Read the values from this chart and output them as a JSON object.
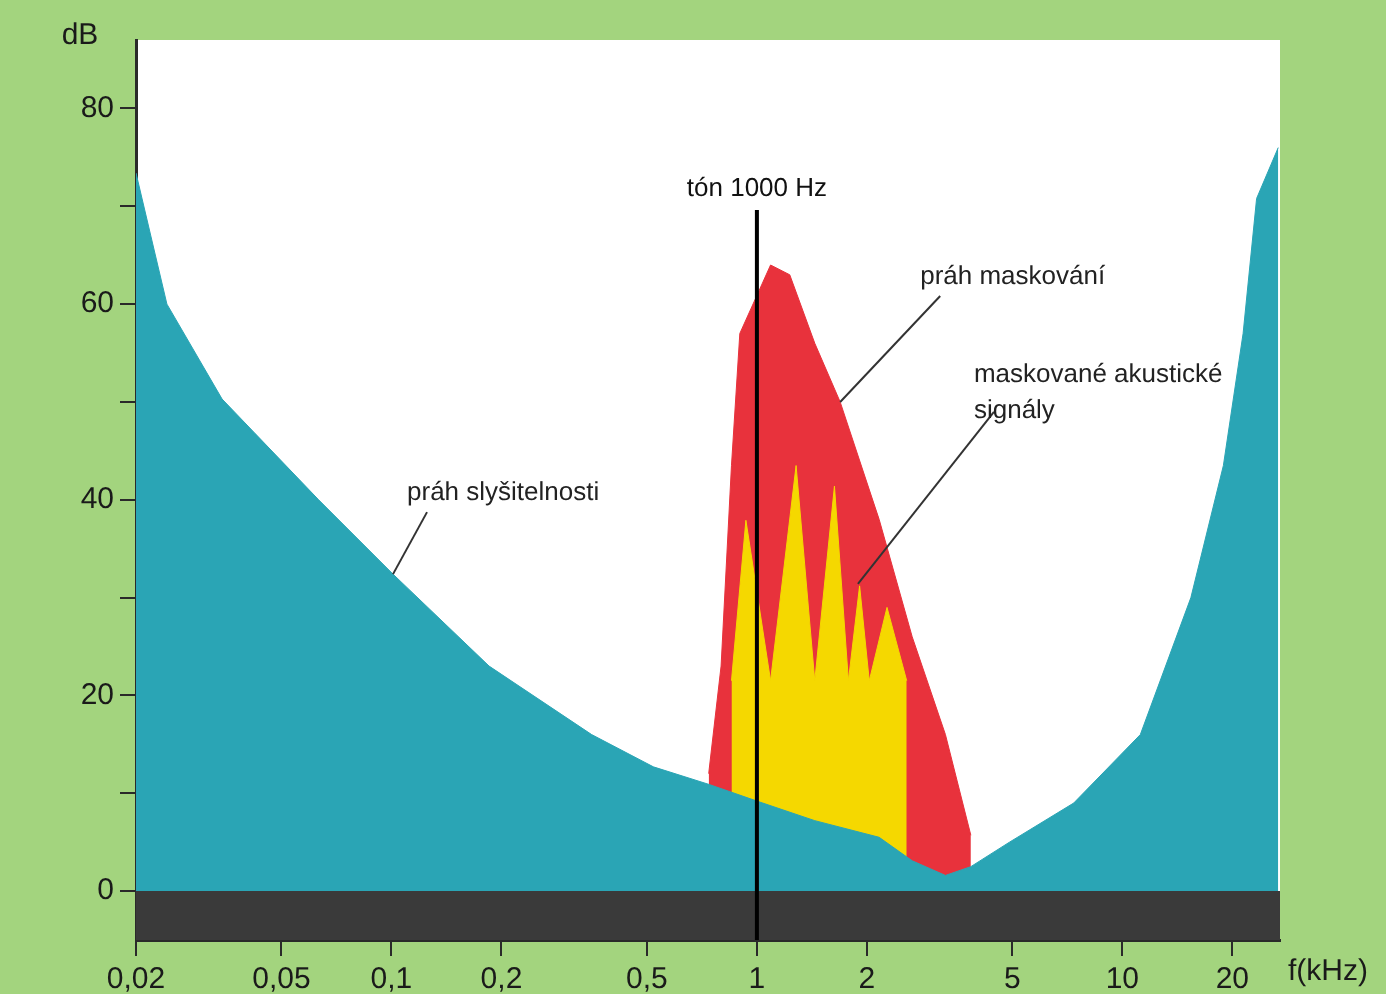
{
  "chart_data": {
    "type": "area",
    "xlabel": "f(kHz)",
    "ylabel": "dB",
    "log": "x",
    "grid": false,
    "legend": false,
    "marker": "none",
    "xlim": [
      0.02,
      27
    ],
    "ylim": [
      -5,
      87
    ],
    "xticks": [
      {
        "value": 0.02,
        "label": "0,02"
      },
      {
        "value": 0.05,
        "label": "0,05"
      },
      {
        "value": 0.1,
        "label": "0,1"
      },
      {
        "value": 0.2,
        "label": "0,2"
      },
      {
        "value": 0.5,
        "label": "0,5"
      },
      1,
      2,
      5,
      10,
      20
    ],
    "yticks": [
      0,
      {
        "value": 10,
        "label": null
      },
      20,
      {
        "value": 30,
        "label": null
      },
      40,
      {
        "value": 50,
        "label": null
      },
      60,
      {
        "value": 70,
        "label": null
      },
      80
    ],
    "series": [
      {
        "color": "#2aa5b5",
        "x": [
          0.02,
          0.0243,
          0.0344,
          0.0632,
          0.101,
          0.185,
          0.353,
          0.521,
          0.74,
          1.0,
          1.44,
          2.16,
          2.66,
          3.28,
          3.85,
          4.91,
          7.36,
          11.2,
          15.4,
          18.9,
          21.4,
          23.3,
          26.7
        ],
        "values": [
          73.4,
          60,
          50.3,
          40,
          32.4,
          23,
          16,
          12.7,
          10.9,
          9.2,
          7.2,
          5.5,
          3.1,
          1.6,
          2.5,
          5,
          9,
          16,
          30,
          43.5,
          57,
          70.8,
          76
        ]
      },
      {
        "color": "#f5d800",
        "x": [
          0.852,
          0.933,
          1.09,
          1.28,
          1.44,
          1.63,
          1.78,
          1.91,
          2.03,
          2.27,
          2.57
        ],
        "values": [
          21.5,
          37.9,
          21.5,
          43.5,
          21.5,
          41.4,
          21.5,
          31.2,
          21.5,
          29,
          21.5
        ]
      },
      {
        "color": "#e8323c",
        "x": [
          0.738,
          0.798,
          0.852,
          0.898,
          1.09,
          1.23,
          1.44,
          1.69,
          2.16,
          2.66,
          3.28,
          3.85
        ],
        "values": [
          12,
          23,
          43.5,
          57,
          64,
          63,
          56,
          50,
          38,
          26,
          16,
          5.7
        ]
      }
    ],
    "bands": [
      {
        "axis": "y",
        "from": -5,
        "to": 0,
        "color": "#3a3a3a"
      }
    ],
    "ref_lines": [
      {
        "axis": "x",
        "value": 1,
        "label": "tón 1000 Hz",
        "color": "#000000"
      }
    ],
    "annotations": [
      {
        "text": "práh slyšitelnosti",
        "x": 0.101,
        "y": 32.4
      },
      {
        "text": "práh maskování",
        "x": 1.69,
        "y": 50
      },
      {
        "text": "maskované akustické signály",
        "x": 1.89,
        "y": 31.4
      }
    ]
  }
}
